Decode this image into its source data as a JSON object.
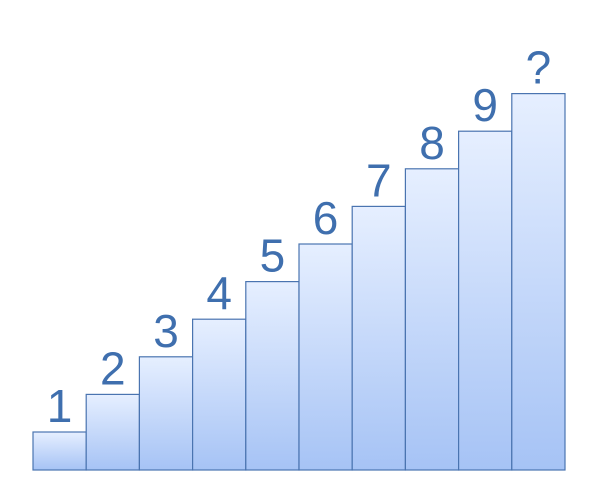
{
  "colors": {
    "bar_fill_top": "#e6efff",
    "bar_fill_bottom": "#a6c3f5",
    "bar_stroke": "#4a74b0",
    "label": "#3f6fae",
    "background": "#ffffff"
  },
  "steps": [
    {
      "label": "1",
      "level": 1
    },
    {
      "label": "2",
      "level": 2
    },
    {
      "label": "3",
      "level": 3
    },
    {
      "label": "4",
      "level": 4
    },
    {
      "label": "5",
      "level": 5
    },
    {
      "label": "6",
      "level": 6
    },
    {
      "label": "7",
      "level": 7
    },
    {
      "label": "8",
      "level": 8
    },
    {
      "label": "9",
      "level": 9
    },
    {
      "label": "?",
      "level": 10
    }
  ]
}
